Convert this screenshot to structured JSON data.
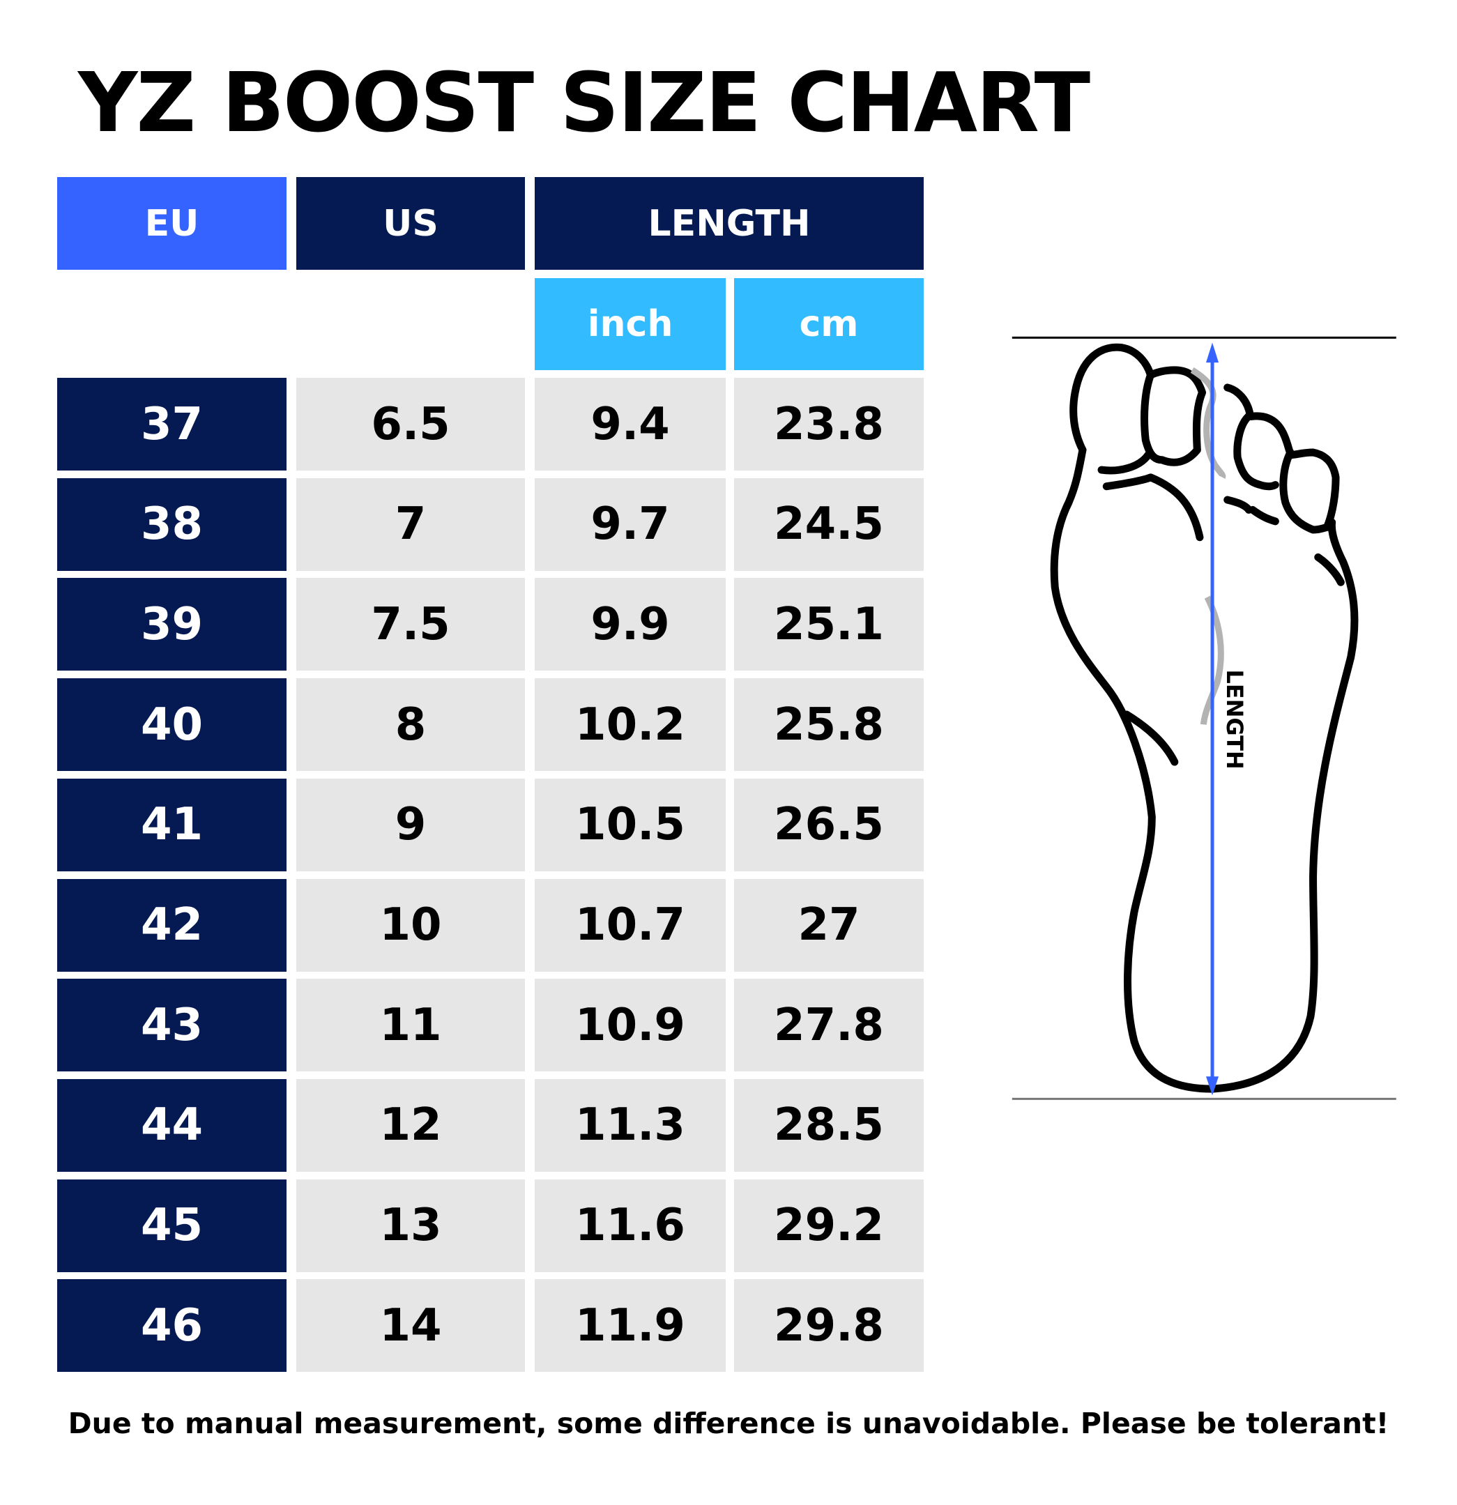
{
  "title": "YZ BOOST SIZE CHART",
  "colors": {
    "eu_header": "#3563FF",
    "navy": "#051A52",
    "unit_header": "#33BBFF",
    "cell_bg": "#E6E6E6",
    "arrow": "#3563FF"
  },
  "table": {
    "headers": {
      "eu": "EU",
      "us": "US",
      "length": "LENGTH"
    },
    "units": {
      "inch": "inch",
      "cm": "cm"
    },
    "rows": [
      {
        "eu": "37",
        "us": "6.5",
        "inch": "9.4",
        "cm": "23.8"
      },
      {
        "eu": "38",
        "us": "7",
        "inch": "9.7",
        "cm": "24.5"
      },
      {
        "eu": "39",
        "us": "7.5",
        "inch": "9.9",
        "cm": "25.1"
      },
      {
        "eu": "40",
        "us": "8",
        "inch": "10.2",
        "cm": "25.8"
      },
      {
        "eu": "41",
        "us": "9",
        "inch": "10.5",
        "cm": "26.5"
      },
      {
        "eu": "42",
        "us": "10",
        "inch": "10.7",
        "cm": "27"
      },
      {
        "eu": "43",
        "us": "11",
        "inch": "10.9",
        "cm": "27.8"
      },
      {
        "eu": "44",
        "us": "12",
        "inch": "11.3",
        "cm": "28.5"
      },
      {
        "eu": "45",
        "us": "13",
        "inch": "11.6",
        "cm": "29.2"
      },
      {
        "eu": "46",
        "us": "14",
        "inch": "11.9",
        "cm": "29.8"
      }
    ]
  },
  "diagram": {
    "length_label": "LENGTH",
    "icon": "foot-sole-icon"
  },
  "footer": "Due to manual measurement, some difference is unavoidable. Please be tolerant!"
}
